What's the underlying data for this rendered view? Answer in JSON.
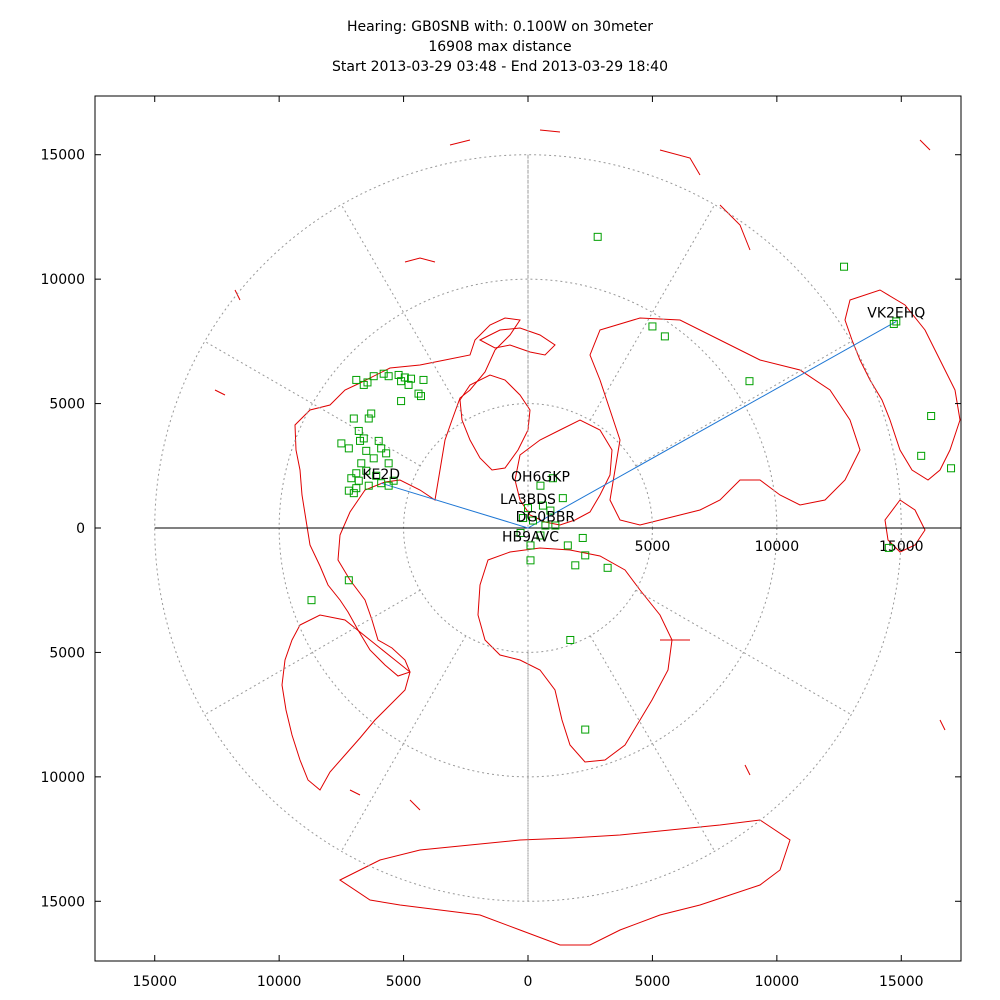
{
  "chart_data": {
    "type": "scatter",
    "title_lines": [
      "Hearing: GB0SNB with: 0.100W on 30meter",
      "16908 max distance",
      "Start 2013-03-29 03:48 - End 2013-03-29 18:40"
    ],
    "projection": "azimuthal-equidistant centered on transmitter",
    "xlim": [
      -17400,
      17400
    ],
    "ylim": [
      -17400,
      17400
    ],
    "x_ticks": [
      "15000",
      "10000",
      "5000",
      "0",
      "5000",
      "10000",
      "15000"
    ],
    "x_tick_values": [
      -15000,
      -10000,
      -5000,
      0,
      5000,
      10000,
      15000
    ],
    "y_ticks": [
      "15000",
      "10000",
      "5000",
      "0",
      "5000",
      "10000",
      "15000"
    ],
    "y_tick_values": [
      15000,
      10000,
      5000,
      0,
      -5000,
      -10000,
      -15000
    ],
    "inner_axis_labels": [
      "5000",
      "10000",
      "15000"
    ],
    "inner_axis_values": [
      5000,
      10000,
      15000
    ],
    "range_rings_km": [
      5000,
      10000,
      15000
    ],
    "radial_spokes_deg": [
      30,
      60,
      90,
      120,
      150,
      210,
      240,
      270,
      300,
      330
    ],
    "max_distance_km": 16908,
    "colors": {
      "coast": "#e00000",
      "spots": "#00a000",
      "paths": "#1f77d4",
      "grid": "#999999",
      "axis": "#000000"
    },
    "transmitter": [
      0,
      0
    ],
    "labeled_spots": [
      {
        "call": "VK2EHQ",
        "x": 14800,
        "y": 8300
      },
      {
        "call": "KE2D",
        "x": -5900,
        "y": 1800
      },
      {
        "call": "OH6GKP",
        "x": 500,
        "y": 1700
      },
      {
        "call": "LA3BDS",
        "x": 0,
        "y": 800
      },
      {
        "call": "DG0BBR",
        "x": 700,
        "y": 100
      },
      {
        "call": "HB9AVC",
        "x": 100,
        "y": -700
      }
    ],
    "spots": [
      [
        -6200,
        6100
      ],
      [
        -6450,
        5850
      ],
      [
        -6600,
        5750
      ],
      [
        -6900,
        5950
      ],
      [
        -5800,
        6200
      ],
      [
        -5600,
        6100
      ],
      [
        -5200,
        6150
      ],
      [
        -5100,
        5900
      ],
      [
        -4950,
        6050
      ],
      [
        -4700,
        6000
      ],
      [
        -4200,
        5950
      ],
      [
        -4800,
        5750
      ],
      [
        -4400,
        5400
      ],
      [
        -4300,
        5300
      ],
      [
        -5100,
        5100
      ],
      [
        -6300,
        4600
      ],
      [
        -7000,
        4400
      ],
      [
        -6400,
        4400
      ],
      [
        -6800,
        3900
      ],
      [
        -6600,
        3600
      ],
      [
        -6750,
        3500
      ],
      [
        -7500,
        3400
      ],
      [
        -7200,
        3200
      ],
      [
        -6500,
        3100
      ],
      [
        -6000,
        3500
      ],
      [
        -5900,
        3200
      ],
      [
        -5700,
        3000
      ],
      [
        -5600,
        2600
      ],
      [
        -6200,
        2800
      ],
      [
        -6700,
        2600
      ],
      [
        -6500,
        2300
      ],
      [
        -6900,
        2200
      ],
      [
        -7100,
        2000
      ],
      [
        -6800,
        1900
      ],
      [
        -6400,
        1700
      ],
      [
        -6900,
        1600
      ],
      [
        -7200,
        1500
      ],
      [
        -7000,
        1400
      ],
      [
        -6100,
        2100
      ],
      [
        -5400,
        1900
      ],
      [
        -5600,
        1700
      ],
      [
        -7200,
        -2100
      ],
      [
        -8700,
        -2900
      ],
      [
        2800,
        11700
      ],
      [
        5000,
        8100
      ],
      [
        5500,
        7700
      ],
      [
        12700,
        10500
      ],
      [
        14700,
        8200
      ],
      [
        8900,
        5900
      ],
      [
        16200,
        4500
      ],
      [
        17000,
        2400
      ],
      [
        15800,
        2900
      ],
      [
        14500,
        -800
      ],
      [
        2300,
        -1100
      ],
      [
        1900,
        -1500
      ],
      [
        3200,
        -1600
      ],
      [
        1700,
        -4500
      ],
      [
        2300,
        -8100
      ],
      [
        100,
        -1300
      ],
      [
        1400,
        1200
      ],
      [
        600,
        900
      ],
      [
        900,
        700
      ],
      [
        200,
        300
      ],
      [
        1100,
        100
      ],
      [
        -200,
        400
      ],
      [
        1600,
        -700
      ],
      [
        2200,
        -400
      ],
      [
        -300,
        -200
      ],
      [
        500,
        -300
      ],
      [
        1000,
        2000
      ]
    ]
  }
}
